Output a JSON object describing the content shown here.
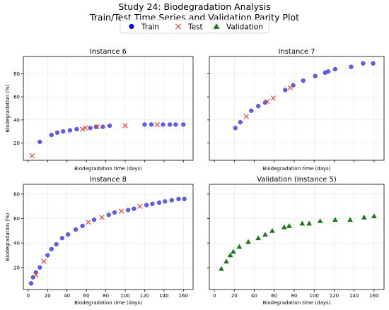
{
  "title": "Study 24: Biodegradation Analysis",
  "subtitle": "Train/Test Time Series and Validation Parity Plot",
  "legend": {
    "placement": "top-center",
    "items": [
      {
        "label": "Train",
        "marker": "circle",
        "color": "#0000ee"
      },
      {
        "label": "Test",
        "marker": "x",
        "color": "#e8382b"
      },
      {
        "label": "Validation",
        "marker": "triangle",
        "color": "#1a7a1a"
      }
    ]
  },
  "colors": {
    "train": "#5f5fe8",
    "train_edge": "#3a3ad8",
    "test": "#e8382b",
    "validation": "#1a7a1a",
    "grid": "#e6e6e6"
  },
  "chart_data": [
    {
      "type": "scatter",
      "title": "Instance 6",
      "xlabel": "Biodegradation time (days)",
      "ylabel": "Biodegradation (%)",
      "xlim": [
        -5,
        170
      ],
      "ylim": [
        5,
        95
      ],
      "xticks": [],
      "yticks": [
        20,
        40,
        60,
        80
      ],
      "grid": true,
      "series": [
        {
          "name": "Train",
          "marker": "circle",
          "x": [
            12,
            24,
            30,
            36,
            43,
            50,
            64,
            70,
            77,
            84,
            120,
            127,
            139,
            146,
            152,
            160
          ],
          "y": [
            21,
            27,
            29,
            30,
            31,
            32,
            33,
            34,
            34,
            35,
            36,
            36,
            36,
            36,
            36,
            36
          ]
        },
        {
          "name": "Test",
          "marker": "x",
          "x": [
            4,
            56,
            59,
            71,
            100,
            133
          ],
          "y": [
            9,
            32,
            33,
            34,
            35,
            36
          ]
        }
      ]
    },
    {
      "type": "scatter",
      "title": "Instance 7",
      "xlabel": "Biodegradation time (days)",
      "ylabel": "",
      "xlim": [
        -5,
        170
      ],
      "ylim": [
        5,
        95
      ],
      "xticks": [],
      "yticks": [],
      "grid": true,
      "series": [
        {
          "name": "Train",
          "marker": "circle",
          "x": [
            21,
            26,
            37,
            44,
            51,
            71,
            79,
            89,
            101,
            111,
            114,
            121,
            137,
            149,
            159
          ],
          "y": [
            33,
            38,
            48,
            52,
            55,
            66,
            70,
            74,
            78,
            81,
            82,
            84,
            86,
            89,
            89
          ]
        },
        {
          "name": "Test",
          "marker": "x",
          "x": [
            32,
            53,
            59,
            76
          ],
          "y": [
            43,
            56,
            59,
            68
          ]
        }
      ]
    },
    {
      "type": "scatter",
      "title": "Instance 8",
      "xlabel": "Biodegradation time (days)",
      "ylabel": "Biodegradation (%)",
      "xlim": [
        -5,
        170
      ],
      "ylim": [
        2,
        88
      ],
      "xticks": [
        0,
        20,
        40,
        60,
        80,
        100,
        120,
        140,
        160
      ],
      "yticks": [
        20,
        40,
        60,
        80
      ],
      "grid": true,
      "series": [
        {
          "name": "Train",
          "marker": "circle",
          "x": [
            3,
            5,
            8,
            12,
            20,
            24,
            29,
            35,
            41,
            49,
            56,
            68,
            83,
            89,
            103,
            109,
            122,
            128,
            135,
            141,
            148,
            155,
            161
          ],
          "y": [
            7,
            12,
            16,
            20,
            30,
            35,
            39,
            44,
            47,
            51,
            54,
            59,
            63,
            65,
            67,
            68,
            71,
            72,
            73,
            74,
            75,
            76,
            76
          ]
        },
        {
          "name": "Test",
          "marker": "x",
          "x": [
            8,
            16,
            62,
            76,
            96,
            115
          ],
          "y": [
            14,
            25,
            57,
            61,
            66,
            70
          ]
        }
      ]
    },
    {
      "type": "scatter",
      "title": "Validation (Instance 5)",
      "xlabel": "Biodegradation time (days)",
      "ylabel": "",
      "xlim": [
        -5,
        170
      ],
      "ylim": [
        2,
        88
      ],
      "xticks": [
        0,
        20,
        40,
        60,
        80,
        100,
        120,
        140,
        160
      ],
      "yticks": [],
      "grid": true,
      "series": [
        {
          "name": "Validation",
          "marker": "triangle",
          "x": [
            7,
            12,
            16,
            19,
            25,
            34,
            44,
            51,
            58,
            70,
            75,
            88,
            95,
            106,
            121,
            136,
            150,
            160
          ],
          "y": [
            19,
            25,
            30,
            33,
            37,
            41,
            44,
            47,
            50,
            53,
            54,
            56,
            56,
            58,
            59,
            59,
            61,
            62
          ]
        }
      ]
    }
  ]
}
